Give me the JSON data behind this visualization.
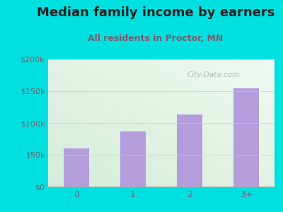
{
  "title": "Median family income by earners",
  "subtitle": "All residents in Proctor, MN",
  "categories": [
    "0",
    "1",
    "2",
    "3+"
  ],
  "values": [
    60000,
    87000,
    113000,
    155000
  ],
  "bar_color": "#b39ddb",
  "background_outer": "#00e0e0",
  "background_inner_color1": "#d4edda",
  "background_inner_color2": "#f0f8f0",
  "title_color": "#222222",
  "subtitle_color": "#7a5c6e",
  "ytick_color": "#7a5c6e",
  "xtick_color": "#7a5c6e",
  "ylim": [
    0,
    200000
  ],
  "yticks": [
    0,
    50000,
    100000,
    150000,
    200000
  ],
  "ytick_labels": [
    "$0",
    "$50k",
    "$100k",
    "$150k",
    "$200k"
  ],
  "watermark": "City-Data.com",
  "title_fontsize": 13,
  "subtitle_fontsize": 9,
  "tick_fontsize": 8
}
